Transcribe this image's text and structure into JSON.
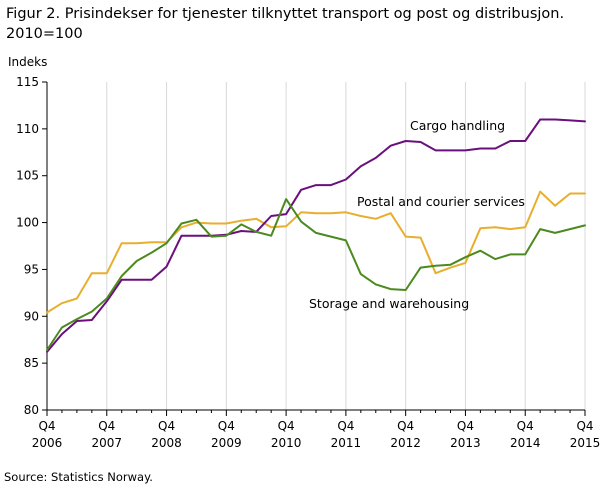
{
  "figure": {
    "title_line1": "Figur 2. Prisindekser for tjenester tilknyttet transport og post og distribusjon.",
    "title_line2": "2010=100",
    "source": "Source: Statistics Norway."
  },
  "chart_data": {
    "type": "line",
    "ylabel": "Indeks",
    "xlabel": "",
    "ylim": [
      80,
      115
    ],
    "yticks": [
      80,
      85,
      90,
      95,
      100,
      105,
      110,
      115
    ],
    "grid": "vertical",
    "legend": "inline labels",
    "x": [
      "2006Q4",
      "2007Q1",
      "2007Q2",
      "2007Q3",
      "2007Q4",
      "2008Q1",
      "2008Q2",
      "2008Q3",
      "2008Q4",
      "2009Q1",
      "2009Q2",
      "2009Q3",
      "2009Q4",
      "2010Q1",
      "2010Q2",
      "2010Q3",
      "2010Q4",
      "2011Q1",
      "2011Q2",
      "2011Q3",
      "2011Q4",
      "2012Q1",
      "2012Q2",
      "2012Q3",
      "2012Q4",
      "2013Q1",
      "2013Q2",
      "2013Q3",
      "2013Q4",
      "2014Q1",
      "2014Q2",
      "2014Q3",
      "2014Q4",
      "2015Q1",
      "2015Q2",
      "2015Q3",
      "2015Q4"
    ],
    "xtick_labels": [
      {
        "q": "Q4",
        "year": "2006"
      },
      {
        "q": "Q4",
        "year": "2007"
      },
      {
        "q": "Q4",
        "year": "2008"
      },
      {
        "q": "Q4",
        "year": "2009"
      },
      {
        "q": "Q4",
        "year": "2010"
      },
      {
        "q": "Q4",
        "year": "2011"
      },
      {
        "q": "Q4",
        "year": "2012"
      },
      {
        "q": "Q4",
        "year": "2013"
      },
      {
        "q": "Q4",
        "year": "2014"
      },
      {
        "q": "Q4",
        "year": "2015"
      }
    ],
    "series": [
      {
        "name": "Cargo handling",
        "color": "#6a0f7d",
        "values": [
          86.2,
          88.1,
          89.5,
          89.6,
          91.6,
          93.9,
          93.9,
          93.9,
          95.3,
          98.6,
          98.6,
          98.6,
          98.7,
          99.1,
          99.0,
          100.7,
          100.9,
          103.5,
          104.0,
          104.0,
          104.6,
          106.0,
          106.9,
          108.2,
          108.7,
          108.6,
          107.7,
          107.7,
          107.7,
          107.9,
          107.9,
          108.7,
          108.7,
          111.0,
          111.0,
          110.9,
          110.8
        ]
      },
      {
        "name": "Postal and courier services",
        "color": "#e8ae2e",
        "values": [
          90.4,
          91.4,
          91.9,
          94.6,
          94.6,
          97.8,
          97.8,
          97.9,
          97.9,
          99.5,
          100.0,
          99.9,
          99.9,
          100.2,
          100.4,
          99.5,
          99.6,
          101.1,
          101.0,
          101.0,
          101.1,
          100.7,
          100.4,
          101.0,
          98.5,
          98.4,
          94.6,
          95.2,
          95.7,
          99.4,
          99.5,
          99.3,
          99.5,
          103.3,
          101.8,
          103.1,
          103.1
        ]
      },
      {
        "name": "Storage and warehousing",
        "color": "#4b8a1e",
        "values": [
          86.4,
          88.8,
          89.7,
          90.5,
          91.9,
          94.3,
          95.9,
          96.8,
          97.8,
          99.9,
          100.3,
          98.5,
          98.6,
          99.8,
          99.0,
          98.6,
          102.5,
          100.1,
          98.9,
          98.5,
          98.1,
          94.5,
          93.4,
          92.9,
          92.8,
          95.2,
          95.4,
          95.5,
          96.3,
          97.0,
          96.1,
          96.6,
          96.6,
          99.3,
          98.9,
          99.3,
          99.7
        ]
      }
    ]
  }
}
